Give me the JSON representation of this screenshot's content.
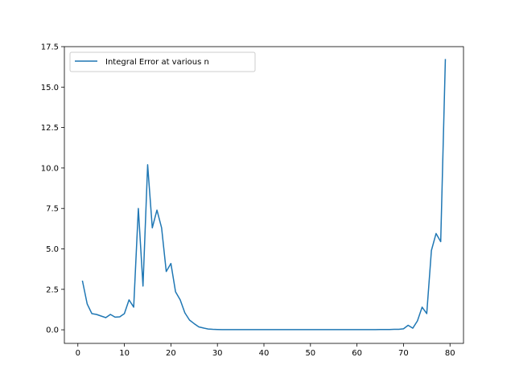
{
  "chart_data": {
    "type": "line",
    "title": "",
    "xlabel": "",
    "ylabel": "",
    "xlim": [
      -2.9,
      82.9
    ],
    "ylim": [
      -0.84,
      17.5
    ],
    "xticks": [
      0,
      10,
      20,
      30,
      40,
      50,
      60,
      70,
      80
    ],
    "xtick_labels": [
      "0",
      "10",
      "20",
      "30",
      "40",
      "50",
      "60",
      "70",
      "80"
    ],
    "yticks": [
      0.0,
      2.5,
      5.0,
      7.5,
      10.0,
      12.5,
      15.0,
      17.5
    ],
    "ytick_labels": [
      "0.0",
      "2.5",
      "5.0",
      "7.5",
      "10.0",
      "12.5",
      "15.0",
      "17.5"
    ],
    "grid": false,
    "legend_position": "top-left",
    "series": [
      {
        "name": "Integral Error at various n",
        "color": "#1f77b4",
        "x": [
          1,
          2,
          3,
          4,
          5,
          6,
          7,
          8,
          9,
          10,
          11,
          12,
          13,
          14,
          15,
          16,
          17,
          18,
          19,
          20,
          21,
          22,
          23,
          24,
          25,
          26,
          27,
          28,
          29,
          30,
          31,
          32,
          33,
          34,
          35,
          36,
          37,
          38,
          39,
          40,
          41,
          42,
          43,
          44,
          45,
          46,
          47,
          48,
          49,
          50,
          51,
          52,
          53,
          54,
          55,
          56,
          57,
          58,
          59,
          60,
          61,
          62,
          63,
          64,
          65,
          66,
          67,
          68,
          69,
          70,
          71,
          72,
          73,
          74,
          75,
          76,
          77,
          78,
          79
        ],
        "y": [
          3.0,
          1.6,
          1.0,
          0.95,
          0.85,
          0.75,
          0.95,
          0.78,
          0.8,
          1.0,
          1.85,
          1.4,
          7.5,
          2.7,
          10.2,
          6.3,
          7.4,
          6.3,
          3.6,
          4.1,
          2.35,
          1.85,
          1.05,
          0.6,
          0.38,
          0.18,
          0.11,
          0.05,
          0.03,
          0.02,
          0.01,
          0.01,
          0.01,
          0.01,
          0.01,
          0.01,
          0.01,
          0.01,
          0.01,
          0.01,
          0.01,
          0.01,
          0.01,
          0.01,
          0.01,
          0.01,
          0.01,
          0.01,
          0.01,
          0.01,
          0.01,
          0.01,
          0.01,
          0.01,
          0.01,
          0.01,
          0.01,
          0.01,
          0.01,
          0.01,
          0.01,
          0.01,
          0.01,
          0.01,
          0.02,
          0.02,
          0.02,
          0.03,
          0.03,
          0.06,
          0.28,
          0.1,
          0.55,
          1.4,
          1.0,
          4.9,
          5.95,
          5.45,
          16.7
        ]
      }
    ]
  }
}
